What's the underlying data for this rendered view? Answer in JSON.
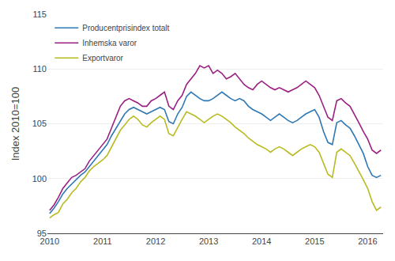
{
  "chart_data": {
    "type": "line",
    "ylabel": "Index 2010=100",
    "categories": [
      "2010",
      null,
      null,
      null,
      null,
      null,
      null,
      null,
      null,
      null,
      null,
      null,
      "2011",
      null,
      null,
      null,
      null,
      null,
      null,
      null,
      null,
      null,
      null,
      null,
      "2012",
      null,
      null,
      null,
      null,
      null,
      null,
      null,
      null,
      null,
      null,
      null,
      "2013",
      null,
      null,
      null,
      null,
      null,
      null,
      null,
      null,
      null,
      null,
      null,
      "2014",
      null,
      null,
      null,
      null,
      null,
      null,
      null,
      null,
      null,
      null,
      null,
      "2015",
      null,
      null,
      null,
      null,
      null,
      null,
      null,
      null,
      null,
      null,
      null,
      "2016",
      null,
      null,
      null
    ],
    "ylim": [
      95,
      115
    ],
    "yticks": [
      95,
      100,
      105,
      110,
      115
    ],
    "grid": true,
    "legend": "upper left",
    "series": [
      {
        "name": "Producentprisindex totalt",
        "color": "#2e78b4",
        "values": [
          96.8,
          97.3,
          97.9,
          98.6,
          99.1,
          99.5,
          99.9,
          100.3,
          100.6,
          101.1,
          101.6,
          102.1,
          102.6,
          103.1,
          103.9,
          104.6,
          105.3,
          105.9,
          106.3,
          106.5,
          106.3,
          106.1,
          105.9,
          106.1,
          106.3,
          106.5,
          106.3,
          105.2,
          105.0,
          105.9,
          106.5,
          107.5,
          107.9,
          107.6,
          107.3,
          107.1,
          107.1,
          107.3,
          107.6,
          107.9,
          107.6,
          107.3,
          107.1,
          107.3,
          107.1,
          106.6,
          106.3,
          106.1,
          105.9,
          105.6,
          105.3,
          105.6,
          105.9,
          105.6,
          105.3,
          105.1,
          105.3,
          105.6,
          105.9,
          106.1,
          106.3,
          105.6,
          104.3,
          103.3,
          103.1,
          105.1,
          105.3,
          104.9,
          104.6,
          103.9,
          103.1,
          102.3,
          101.1,
          100.3,
          100.1,
          100.3
        ]
      },
      {
        "name": "Inhemska varor",
        "color": "#9b1f82",
        "values": [
          97.1,
          97.6,
          98.3,
          99.1,
          99.6,
          100.1,
          100.3,
          100.6,
          100.9,
          101.6,
          102.1,
          102.6,
          103.1,
          103.6,
          104.6,
          105.6,
          106.6,
          107.1,
          107.3,
          107.1,
          106.9,
          106.6,
          106.6,
          107.1,
          107.3,
          107.6,
          107.9,
          106.6,
          106.3,
          107.1,
          107.6,
          108.6,
          109.1,
          109.6,
          110.3,
          110.1,
          110.3,
          109.6,
          109.9,
          109.6,
          109.1,
          109.3,
          109.6,
          109.1,
          108.6,
          108.3,
          108.1,
          108.6,
          108.9,
          108.6,
          108.3,
          108.1,
          108.3,
          108.1,
          107.9,
          108.1,
          108.3,
          108.6,
          108.9,
          108.6,
          108.3,
          107.6,
          106.6,
          105.6,
          105.3,
          107.1,
          107.3,
          106.9,
          106.6,
          105.9,
          105.1,
          104.3,
          103.6,
          102.6,
          102.3,
          102.6
        ]
      },
      {
        "name": "Exportvaror",
        "color": "#b8bb1f",
        "values": [
          96.4,
          96.7,
          96.9,
          97.7,
          98.1,
          98.7,
          99.1,
          99.7,
          100.1,
          100.7,
          101.1,
          101.4,
          101.7,
          102.1,
          102.9,
          103.7,
          104.4,
          104.9,
          105.4,
          105.7,
          105.4,
          104.9,
          104.7,
          105.1,
          105.4,
          105.7,
          105.4,
          104.1,
          103.9,
          104.7,
          105.4,
          106.1,
          105.9,
          105.7,
          105.4,
          105.1,
          105.4,
          105.7,
          105.9,
          105.7,
          105.4,
          105.1,
          104.7,
          104.4,
          104.1,
          103.7,
          103.4,
          103.1,
          102.9,
          102.7,
          102.4,
          102.7,
          102.9,
          102.7,
          102.4,
          102.1,
          102.4,
          102.7,
          102.9,
          103.1,
          102.9,
          102.4,
          101.4,
          100.4,
          100.1,
          102.4,
          102.7,
          102.4,
          102.1,
          101.4,
          100.7,
          99.9,
          99.1,
          97.9,
          97.1,
          97.4
        ]
      }
    ]
  }
}
